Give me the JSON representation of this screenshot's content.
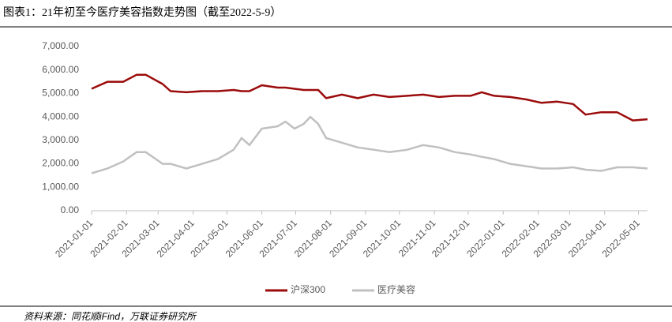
{
  "chart_data": {
    "type": "line",
    "title": "图表1：21年初至今医疗美容指数走势图（截至2022-5-9）",
    "source": "资料来源：同花顺iFind，万联证券研究所",
    "x": [
      "2021-01-01",
      "2021-01-15",
      "2021-01-29",
      "2021-02-10",
      "2021-02-18",
      "2021-03-05",
      "2021-03-12",
      "2021-03-26",
      "2021-04-09",
      "2021-04-23",
      "2021-05-07",
      "2021-05-14",
      "2021-05-21",
      "2021-06-01",
      "2021-06-15",
      "2021-06-22",
      "2021-06-30",
      "2021-07-08",
      "2021-07-14",
      "2021-07-21",
      "2021-07-28",
      "2021-08-11",
      "2021-08-25",
      "2021-09-08",
      "2021-09-22",
      "2021-10-08",
      "2021-10-22",
      "2021-11-05",
      "2021-11-19",
      "2021-12-03",
      "2021-12-13",
      "2021-12-24",
      "2022-01-07",
      "2022-01-21",
      "2022-02-04",
      "2022-02-18",
      "2022-03-04",
      "2022-03-15",
      "2022-03-29",
      "2022-04-12",
      "2022-04-26",
      "2022-05-09"
    ],
    "series": [
      {
        "name": "沪深300",
        "color": "#9b0b0b",
        "values": [
          5200,
          5500,
          5500,
          5800,
          5800,
          5400,
          5100,
          5050,
          5100,
          5100,
          5150,
          5100,
          5100,
          5350,
          5250,
          5250,
          5200,
          5150,
          5150,
          5150,
          4800,
          4950,
          4800,
          4950,
          4850,
          4900,
          4950,
          4850,
          4900,
          4900,
          5050,
          4900,
          4850,
          4750,
          4600,
          4650,
          4550,
          4100,
          4200,
          4200,
          3850,
          3900
        ]
      },
      {
        "name": "医疗美容",
        "color": "#c0c0c0",
        "values": [
          1600,
          1800,
          2100,
          2500,
          2500,
          2000,
          2000,
          1800,
          2000,
          2200,
          2600,
          3100,
          2800,
          3500,
          3600,
          3800,
          3500,
          3700,
          4000,
          3700,
          3100,
          2900,
          2700,
          2600,
          2500,
          2600,
          2800,
          2700,
          2500,
          2400,
          2300,
          2200,
          2000,
          1900,
          1800,
          1800,
          1850,
          1750,
          1700,
          1850,
          1850,
          1800
        ]
      }
    ],
    "xlim": [
      "2021-01-01",
      "2022-05-09"
    ],
    "xticks": [
      "2021-01-01",
      "2021-02-01",
      "2021-03-01",
      "2021-04-01",
      "2021-05-01",
      "2021-06-01",
      "2021-07-01",
      "2021-08-01",
      "2021-09-01",
      "2021-10-01",
      "2021-11-01",
      "2021-12-01",
      "2022-01-01",
      "2022-02-01",
      "2022-03-01",
      "2022-04-01",
      "2022-05-01"
    ],
    "ylim": [
      0,
      7000
    ],
    "yticks": [
      {
        "value": 0,
        "label": "0.00"
      },
      {
        "value": 1000,
        "label": "1,000.00"
      },
      {
        "value": 2000,
        "label": "2,000.00"
      },
      {
        "value": 3000,
        "label": "3,000.00"
      },
      {
        "value": 4000,
        "label": "4,000.00"
      },
      {
        "value": 5000,
        "label": "5,000.00"
      },
      {
        "value": 6000,
        "label": "6,000.00"
      },
      {
        "value": 7000,
        "label": "7,000.00"
      }
    ],
    "legend": "bottom"
  }
}
